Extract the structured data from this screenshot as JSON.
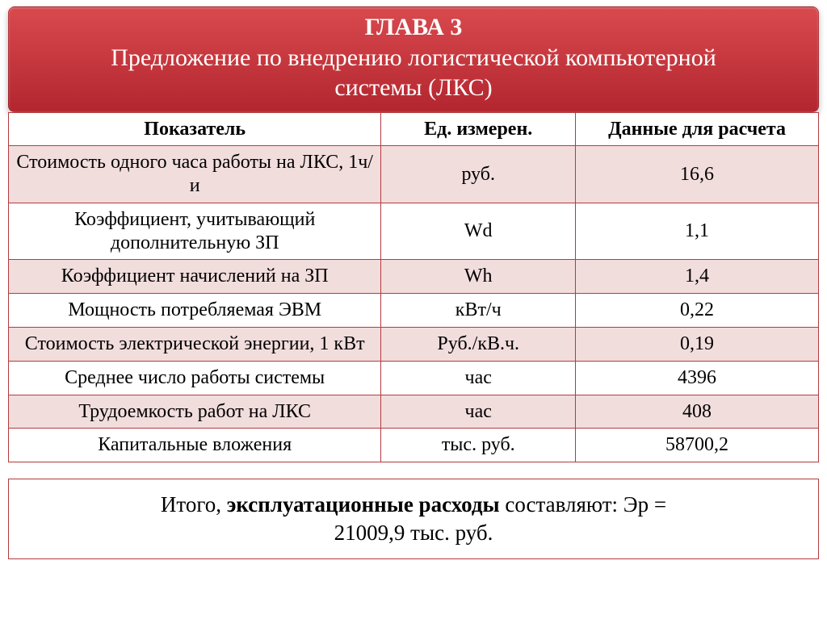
{
  "header": {
    "title": "ГЛАВА 3",
    "subtitle_line1": "Предложение по внедрению логистической компьютерной",
    "subtitle_line2": "системы  (ЛКС)",
    "bg_gradient_top": "#d84a4e",
    "bg_gradient_bottom": "#b4262f",
    "text_color": "#ffffff",
    "title_fontsize": 30,
    "subtitle_fontsize": 30
  },
  "table": {
    "type": "table",
    "border_color": "#b33b3f",
    "header_bg": "#ffffff",
    "row_alt_bg": "#f2dddd",
    "row_bg": "#ffffff",
    "font_color": "#000000",
    "cell_fontsize": 24,
    "columns": [
      {
        "label": "Показатель",
        "width_pct": 46
      },
      {
        "label": "Ед. измерен.",
        "width_pct": 24
      },
      {
        "label": "Данные для расчета",
        "width_pct": 30
      }
    ],
    "rows": [
      {
        "indicator": "Стоимость одного часа работы на ЛКС, 1ч/и",
        "unit": "руб.",
        "value": "16,6"
      },
      {
        "indicator": "Коэффициент, учитывающий дополнительную ЗП",
        "unit": "Wd",
        "value": "1,1"
      },
      {
        "indicator": "Коэффициент начислений на ЗП",
        "unit": "Wh",
        "value": "1,4"
      },
      {
        "indicator": "Мощность потребляемая ЭВМ",
        "unit": "кВт/ч",
        "value": "0,22"
      },
      {
        "indicator": "Стоимость электрической энергии, 1 кВт",
        "unit": "Руб./кВ.ч.",
        "value": "0,19"
      },
      {
        "indicator": "Среднее число работы системы",
        "unit": "час",
        "value": "4396"
      },
      {
        "indicator": "Трудоемкость работ на ЛКС",
        "unit": "час",
        "value": "408"
      },
      {
        "indicator": "Капитальные вложения",
        "unit": "тыс. руб.",
        "value": "58700,2"
      }
    ]
  },
  "summary": {
    "pre": "Итого, ",
    "bold": "эксплуатационные расходы",
    "post_line1": " составляют: Эр =",
    "post_line2": "21009,9 тыс. руб.",
    "border_color": "#b33b3f",
    "font_size": 27
  }
}
